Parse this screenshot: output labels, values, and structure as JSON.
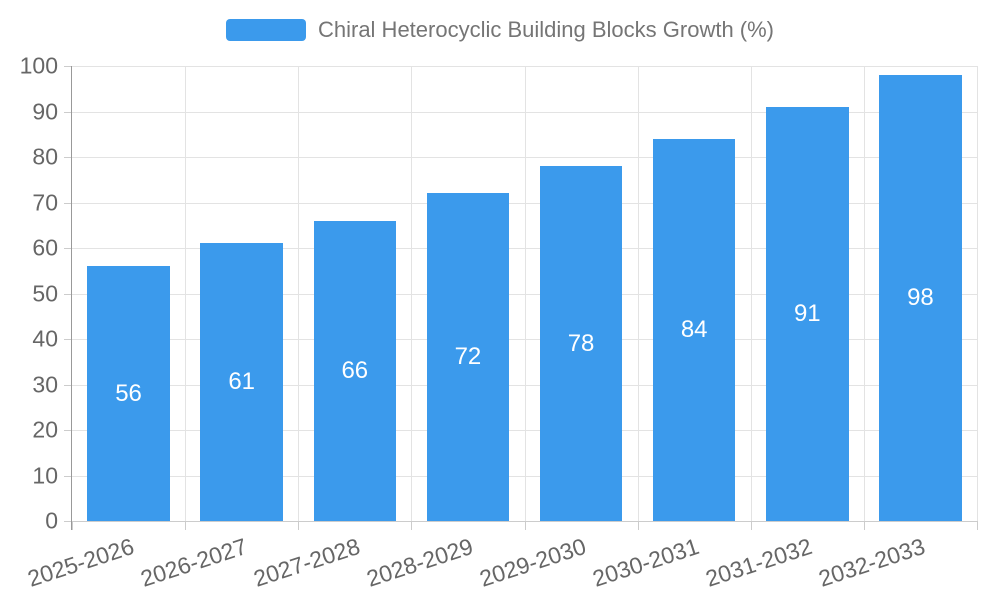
{
  "chart_data": {
    "type": "bar",
    "title": "Chiral Heterocyclic Building Blocks Growth (%)",
    "categories": [
      "2025-2026",
      "2026-2027",
      "2027-2028",
      "2028-2029",
      "2029-2030",
      "2030-2031",
      "2031-2032",
      "2032-2033"
    ],
    "values": [
      56,
      61,
      66,
      72,
      78,
      84,
      91,
      98
    ],
    "xlabel": "",
    "ylabel": "",
    "ylim": [
      0,
      100
    ],
    "y_ticks": [
      0,
      10,
      20,
      30,
      40,
      50,
      60,
      70,
      80,
      90,
      100
    ],
    "grid": "horizontal and vertical light gridlines",
    "legend_position": "top-center",
    "bar_labels_visible": true,
    "colors": {
      "bar_fill": "#3B9AEC",
      "bar_label_text": "#FFFFFF",
      "grid_line": "#E3E3E3",
      "y_axis_line": "#999999",
      "x_axis_line": "#CCCCCC",
      "tick_mark": "#CCCCCC",
      "axis_label_text": "#666666",
      "title_text": "#757575",
      "background": "#FFFFFF"
    }
  }
}
